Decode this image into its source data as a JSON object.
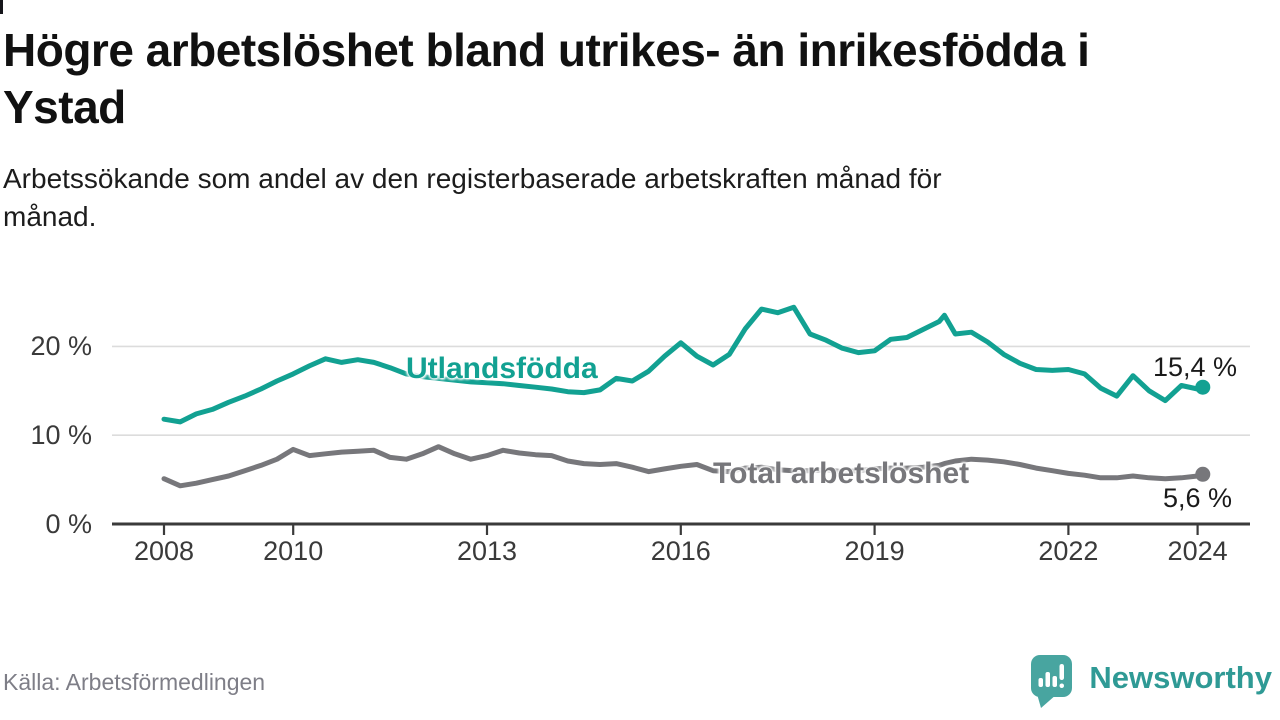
{
  "header": {
    "title": "Högre arbetslöshet bland utrikes- än inrikesfödda i\nYstad",
    "subtitle": "Arbetssökande som andel av den registerbaserade arbetskraften månad för\nmånad."
  },
  "footer": {
    "source": "Källa: Arbetsförmedlingen",
    "brand": "Newsworthy"
  },
  "colors": {
    "accent_teal": "#12a192",
    "series_gray": "#77777b",
    "axis": "#3a3a3a",
    "grid": "#dcdcdc",
    "logo_icon": "#48a5a0",
    "logo_text": "#2f9a95"
  },
  "chart_data": {
    "type": "line",
    "title": "Högre arbetslöshet bland utrikes- än inrikesfödda i Ystad",
    "subtitle": "Arbetssökande som andel av den registerbaserade arbetskraften månad för månad.",
    "source": "Källa: Arbetsförmedlingen",
    "xlabel": "",
    "ylabel": "",
    "grid": "horizontal",
    "legend_position": "inline-labels",
    "xlim": [
      2007.9,
      2024.75
    ],
    "ylim": [
      0,
      26.5
    ],
    "x_ticks": [
      {
        "value": 2008,
        "label": "2008"
      },
      {
        "value": 2010,
        "label": "2010"
      },
      {
        "value": 2013,
        "label": "2013"
      },
      {
        "value": 2016,
        "label": "2016"
      },
      {
        "value": 2019,
        "label": "2019"
      },
      {
        "value": 2022,
        "label": "2022"
      },
      {
        "value": 2024,
        "label": "2024"
      }
    ],
    "y_ticks": [
      {
        "value": 0,
        "label": "0 %"
      },
      {
        "value": 10,
        "label": "10 %"
      },
      {
        "value": 20,
        "label": "20 %"
      }
    ],
    "x": [
      2008.0,
      2008.25,
      2008.5,
      2008.75,
      2009.0,
      2009.25,
      2009.5,
      2009.75,
      2010.0,
      2010.25,
      2010.5,
      2010.75,
      2011.0,
      2011.25,
      2011.5,
      2011.75,
      2012.0,
      2012.25,
      2012.5,
      2012.75,
      2013.0,
      2013.25,
      2013.5,
      2013.75,
      2014.0,
      2014.25,
      2014.5,
      2014.75,
      2015.0,
      2015.25,
      2015.5,
      2015.75,
      2016.0,
      2016.25,
      2016.5,
      2016.75,
      2017.0,
      2017.25,
      2017.5,
      2017.75,
      2018.0,
      2018.25,
      2018.5,
      2018.75,
      2019.0,
      2019.25,
      2019.5,
      2019.75,
      2020.0,
      2020.08,
      2020.25,
      2020.5,
      2020.75,
      2021.0,
      2021.25,
      2021.5,
      2021.75,
      2022.0,
      2022.25,
      2022.5,
      2022.75,
      2023.0,
      2023.25,
      2023.5,
      2023.75,
      2024.0,
      2024.08
    ],
    "series": [
      {
        "name": "Utlandsfödda",
        "color": "#12a192",
        "end_value": 15.4,
        "end_label": "15,4 %",
        "values": [
          11.8,
          11.5,
          12.4,
          12.9,
          13.7,
          14.4,
          15.2,
          16.1,
          16.9,
          17.8,
          18.6,
          18.2,
          18.5,
          18.2,
          17.6,
          16.9,
          16.6,
          16.4,
          16.2,
          16.0,
          15.9,
          15.8,
          15.6,
          15.4,
          15.2,
          14.9,
          14.8,
          15.1,
          16.4,
          16.1,
          17.2,
          18.9,
          20.4,
          18.9,
          17.9,
          19.1,
          22.0,
          24.2,
          23.8,
          24.4,
          21.4,
          20.7,
          19.8,
          19.3,
          19.5,
          20.8,
          21.0,
          21.9,
          22.8,
          23.5,
          21.4,
          21.6,
          20.5,
          19.1,
          18.1,
          17.4,
          17.3,
          17.4,
          16.9,
          15.3,
          14.4,
          16.7,
          15.0,
          13.9,
          15.6,
          15.2,
          15.4
        ]
      },
      {
        "name": "Total arbetslöshet",
        "color": "#77777b",
        "end_value": 5.6,
        "end_label": "5,6 %",
        "values": [
          5.1,
          4.3,
          4.6,
          5.0,
          5.4,
          6.0,
          6.6,
          7.3,
          8.4,
          7.7,
          7.9,
          8.1,
          8.2,
          8.3,
          7.5,
          7.3,
          7.9,
          8.7,
          7.9,
          7.3,
          7.7,
          8.3,
          8.0,
          7.8,
          7.7,
          7.1,
          6.8,
          6.7,
          6.8,
          6.4,
          5.9,
          6.2,
          6.5,
          6.7,
          6.0,
          5.9,
          6.3,
          6.4,
          6.1,
          6.0,
          6.0,
          6.1,
          5.9,
          6.0,
          6.2,
          6.3,
          6.3,
          6.4,
          6.6,
          6.8,
          7.1,
          7.3,
          7.2,
          7.0,
          6.7,
          6.3,
          6.0,
          5.7,
          5.5,
          5.2,
          5.2,
          5.4,
          5.2,
          5.1,
          5.2,
          5.4,
          5.6
        ]
      }
    ]
  }
}
